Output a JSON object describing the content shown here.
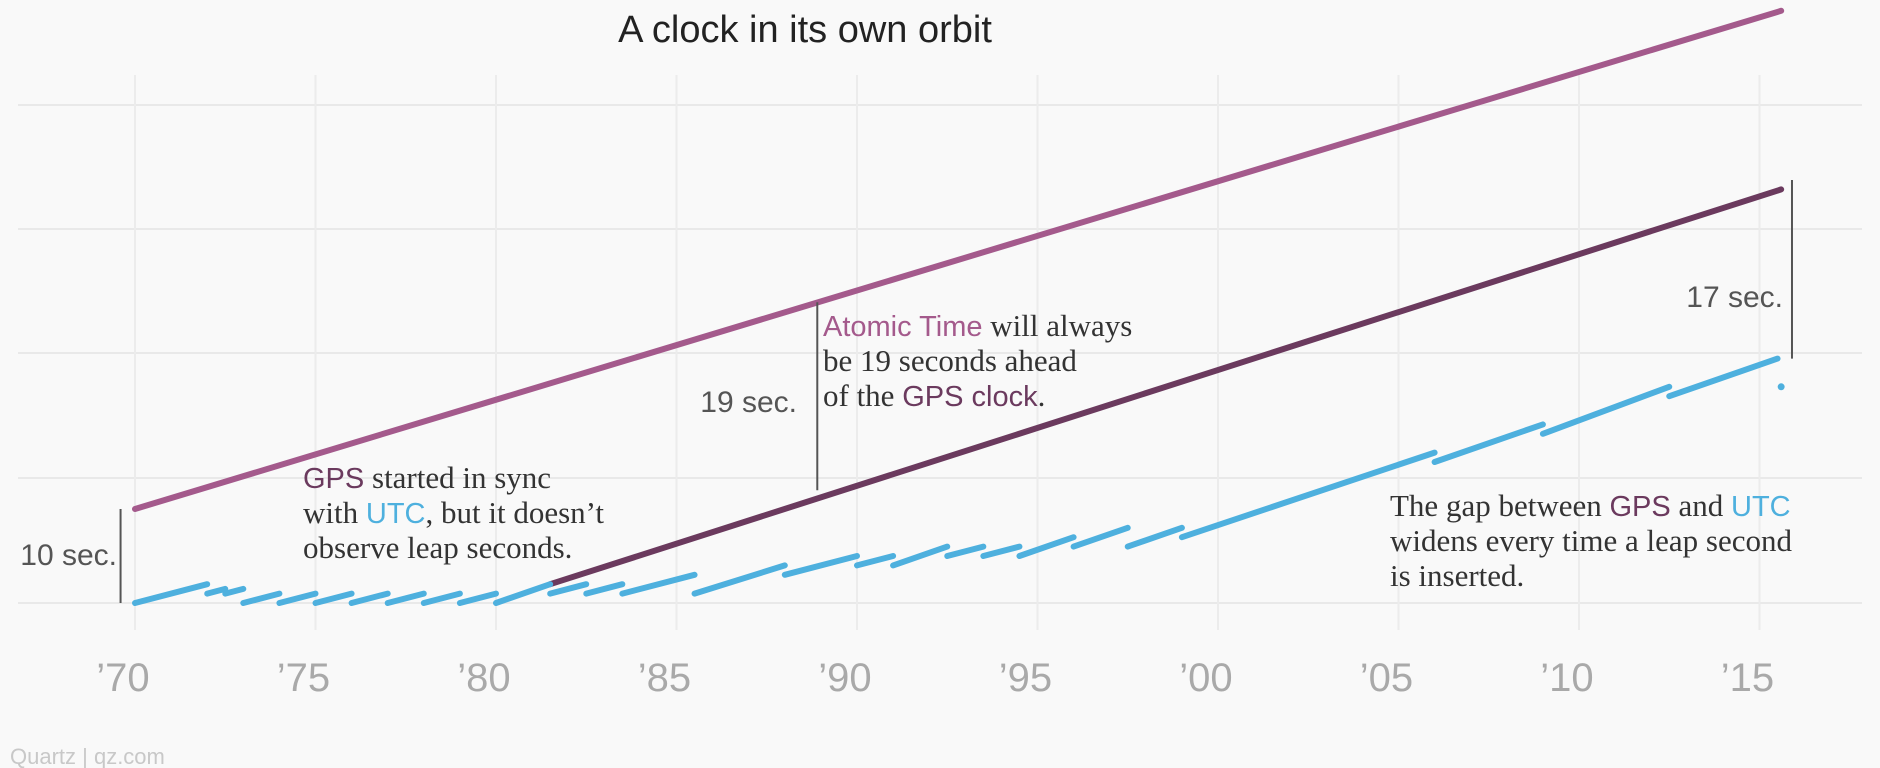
{
  "chart_data": {
    "type": "line",
    "title": "A clock in its own orbit",
    "xlabel": "",
    "ylabel": "",
    "xlim": [
      1970,
      2018
    ],
    "ylim": [
      0,
      50
    ],
    "grid": true,
    "x_ticks": [
      1970,
      1975,
      1980,
      1985,
      1990,
      1995,
      2000,
      2005,
      2010,
      2015
    ],
    "x_tick_labels": [
      "’70",
      "’75",
      "’80",
      "’85",
      "’90",
      "’95",
      "’00",
      "’05",
      "’10",
      "’15"
    ],
    "colors": {
      "atomic": "#a45a8c",
      "gps": "#6b3a5e",
      "utc": "#4eb0de"
    },
    "series": [
      {
        "name": "Atomic Time",
        "start": {
          "x": 1970.0,
          "y": 10
        },
        "end": {
          "x": 2015.6,
          "y": 63
        }
      },
      {
        "name": "GPS",
        "start": {
          "x": 1981.5,
          "y": 2
        },
        "end": {
          "x": 2015.6,
          "y": 44
        }
      },
      {
        "name": "UTC",
        "segments": [
          [
            1970.0,
            0,
            1972.0,
            2
          ],
          [
            1972.0,
            1,
            1972.5,
            1.5
          ],
          [
            1972.5,
            1,
            1973.0,
            1.5
          ],
          [
            1973.0,
            0,
            1974.0,
            1
          ],
          [
            1974.0,
            0,
            1975.0,
            1
          ],
          [
            1975.0,
            0,
            1976.0,
            1
          ],
          [
            1976.0,
            0,
            1977.0,
            1
          ],
          [
            1977.0,
            0,
            1978.0,
            1
          ],
          [
            1978.0,
            0,
            1979.0,
            1
          ],
          [
            1979.0,
            0,
            1980.0,
            1
          ],
          [
            1980.0,
            0,
            1981.5,
            2
          ],
          [
            1981.5,
            1,
            1982.5,
            2
          ],
          [
            1982.5,
            1,
            1983.5,
            2
          ],
          [
            1983.5,
            1,
            1985.5,
            3
          ],
          [
            1985.5,
            1,
            1988.0,
            4
          ],
          [
            1988.0,
            3,
            1990.0,
            5
          ],
          [
            1990.0,
            4,
            1991.0,
            5
          ],
          [
            1991.0,
            4,
            1992.5,
            6
          ],
          [
            1992.5,
            5,
            1993.5,
            6
          ],
          [
            1993.5,
            5,
            1994.5,
            6
          ],
          [
            1994.5,
            5,
            1996.0,
            7
          ],
          [
            1996.0,
            6,
            1997.5,
            8
          ],
          [
            1997.5,
            6,
            1999.0,
            8
          ],
          [
            1999.0,
            7,
            2006.0,
            16
          ],
          [
            2006.0,
            15,
            2009.0,
            19
          ],
          [
            2009.0,
            18,
            2012.5,
            23
          ],
          [
            2012.5,
            22,
            2015.5,
            26
          ]
        ]
      }
    ],
    "annotations": [
      {
        "id": "gps-start",
        "parts": [
          [
            {
              "t": "GPS",
              "c": "gps"
            },
            {
              "t": " started in sync",
              "c": "text"
            }
          ],
          [
            {
              "t": "with ",
              "c": "text"
            },
            {
              "t": "UTC",
              "c": "utc"
            },
            {
              "t": ", but it doesn’t",
              "c": "text"
            }
          ],
          [
            {
              "t": "observe leap seconds.",
              "c": "text"
            }
          ]
        ]
      },
      {
        "id": "atomic-ahead",
        "parts": [
          [
            {
              "t": "Atomic Time",
              "c": "atomic"
            },
            {
              "t": " will always",
              "c": "text"
            }
          ],
          [
            {
              "t": "be 19 seconds ahead",
              "c": "text"
            }
          ],
          [
            {
              "t": "of the ",
              "c": "text"
            },
            {
              "t": "GPS clock",
              "c": "gps"
            },
            {
              "t": ".",
              "c": "text"
            }
          ]
        ]
      },
      {
        "id": "gap-widens",
        "parts": [
          [
            {
              "t": "The gap between ",
              "c": "text"
            },
            {
              "t": "GPS",
              "c": "gps"
            },
            {
              "t": " and ",
              "c": "text"
            },
            {
              "t": "UTC",
              "c": "utc"
            }
          ],
          [
            {
              "t": "widens every time a leap second",
              "c": "text"
            }
          ],
          [
            {
              "t": "is inserted.",
              "c": "text"
            }
          ]
        ]
      }
    ],
    "gap_labels": [
      {
        "text": "10 sec.",
        "x": 1969.6,
        "from": 0,
        "to": 10
      },
      {
        "text": "19 sec.",
        "x": 1988.9,
        "from": 12,
        "to": 32
      },
      {
        "text": "17 sec.",
        "x": 2015.9,
        "from": 26,
        "to": 45
      }
    ]
  },
  "credit": "Quartz | qz.com"
}
